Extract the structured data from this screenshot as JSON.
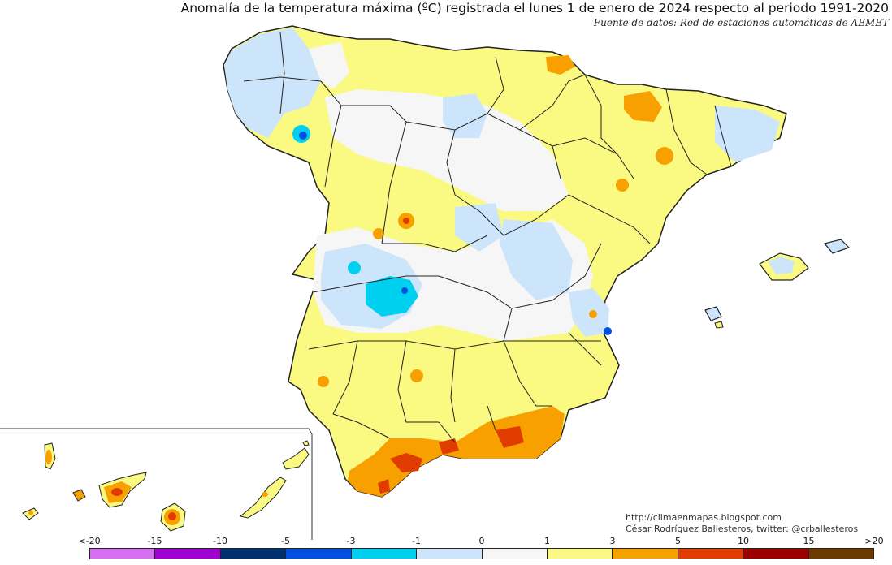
{
  "title": "Anomalía de la temperatura máxima (ºC) registrada el lunes 1 de enero de 2024 respecto al periodo 1991-2020",
  "subtitle": "Fuente de datos: Red de estaciones automáticas de AEMET",
  "credits": {
    "url": "http://climaenmapas.blogspot.com",
    "author": "César Rodríguez Ballesteros, twitter: @crballesteros"
  },
  "legend": {
    "labels": [
      "<-20",
      "-15",
      "-10",
      "-5",
      "-3",
      "-1",
      "0",
      "1",
      "3",
      "5",
      "10",
      "15",
      ">20"
    ],
    "colors": [
      "#d66ef0",
      "#a000d0",
      "#003070",
      "#0050e0",
      "#00d0f0",
      "#cde5fa",
      "#f6f6f6",
      "#fafa82",
      "#f8a000",
      "#e03c00",
      "#9a0000",
      "#6b3a00"
    ]
  },
  "map_colors": {
    "land_default": "#fafa82",
    "cool_light": "#cde5fa",
    "neutral": "#f6f6f6",
    "cool_cyan": "#00d0f0",
    "cool_blue": "#0050e0",
    "warm_orange": "#f8a000",
    "warm_red": "#e03c00",
    "border": "#222222"
  }
}
